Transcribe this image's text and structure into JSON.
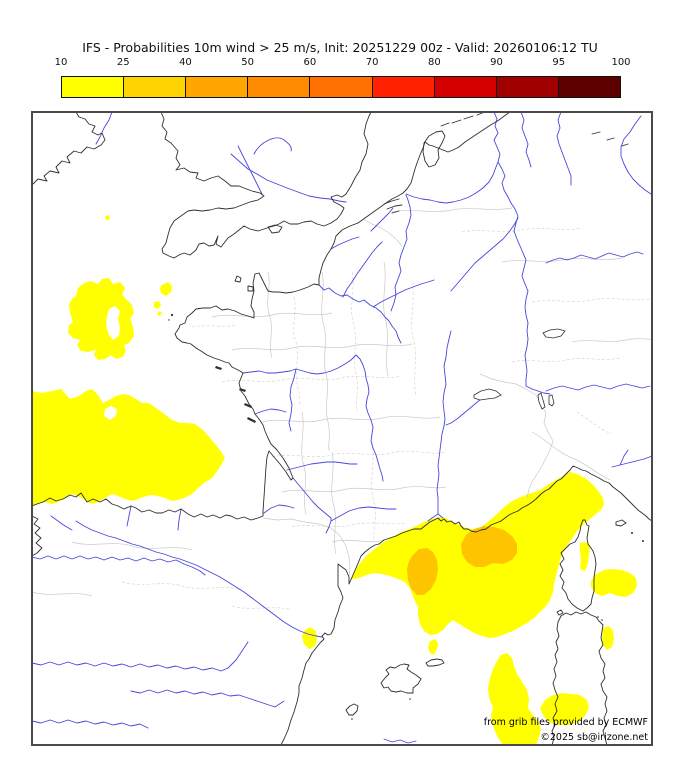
{
  "title": "IFS - Probabilities 10m wind > 25 m/s, Init: 20251229 00z - Valid: 20260106:12 TU",
  "colorbar": {
    "tick_labels": [
      "10",
      "25",
      "40",
      "50",
      "60",
      "70",
      "80",
      "90",
      "95",
      "100"
    ],
    "segment_colors": [
      "#ffff00",
      "#ffd300",
      "#ffa600",
      "#ff8c00",
      "#ff7100",
      "#ff2100",
      "#d40000",
      "#a00000",
      "#5e0000"
    ],
    "unit": "%"
  },
  "map": {
    "attribution_line1": "from grib files provided by ECMWF",
    "attribution_line2": "©2025 sb@irizone.net",
    "colors": {
      "coastline": "#2f2f2f",
      "river": "#4646dc",
      "admin_boundary": "#c9c9c9",
      "prob_10_25": "#ffff00",
      "prob_25_40": "#ffc400",
      "background": "#ffffff"
    },
    "areas": [
      {
        "label": "Atlantic west of Brittany",
        "probability": "10-25"
      },
      {
        "label": "Bay of Biscay",
        "probability": "10-25"
      },
      {
        "label": "Gulf of Lion / Ligurian Sea around Corsica",
        "probability": "10-25"
      },
      {
        "label": "Gulf of Lion core patches",
        "probability": "25-40"
      },
      {
        "label": "East of Corsica / west of Sardinia",
        "probability": "10-25"
      },
      {
        "label": "Spanish coast near Ebro delta",
        "probability": "10-25"
      },
      {
        "label": "Sea south of Balearics (bottom of map)",
        "probability": "10-25"
      }
    ]
  }
}
